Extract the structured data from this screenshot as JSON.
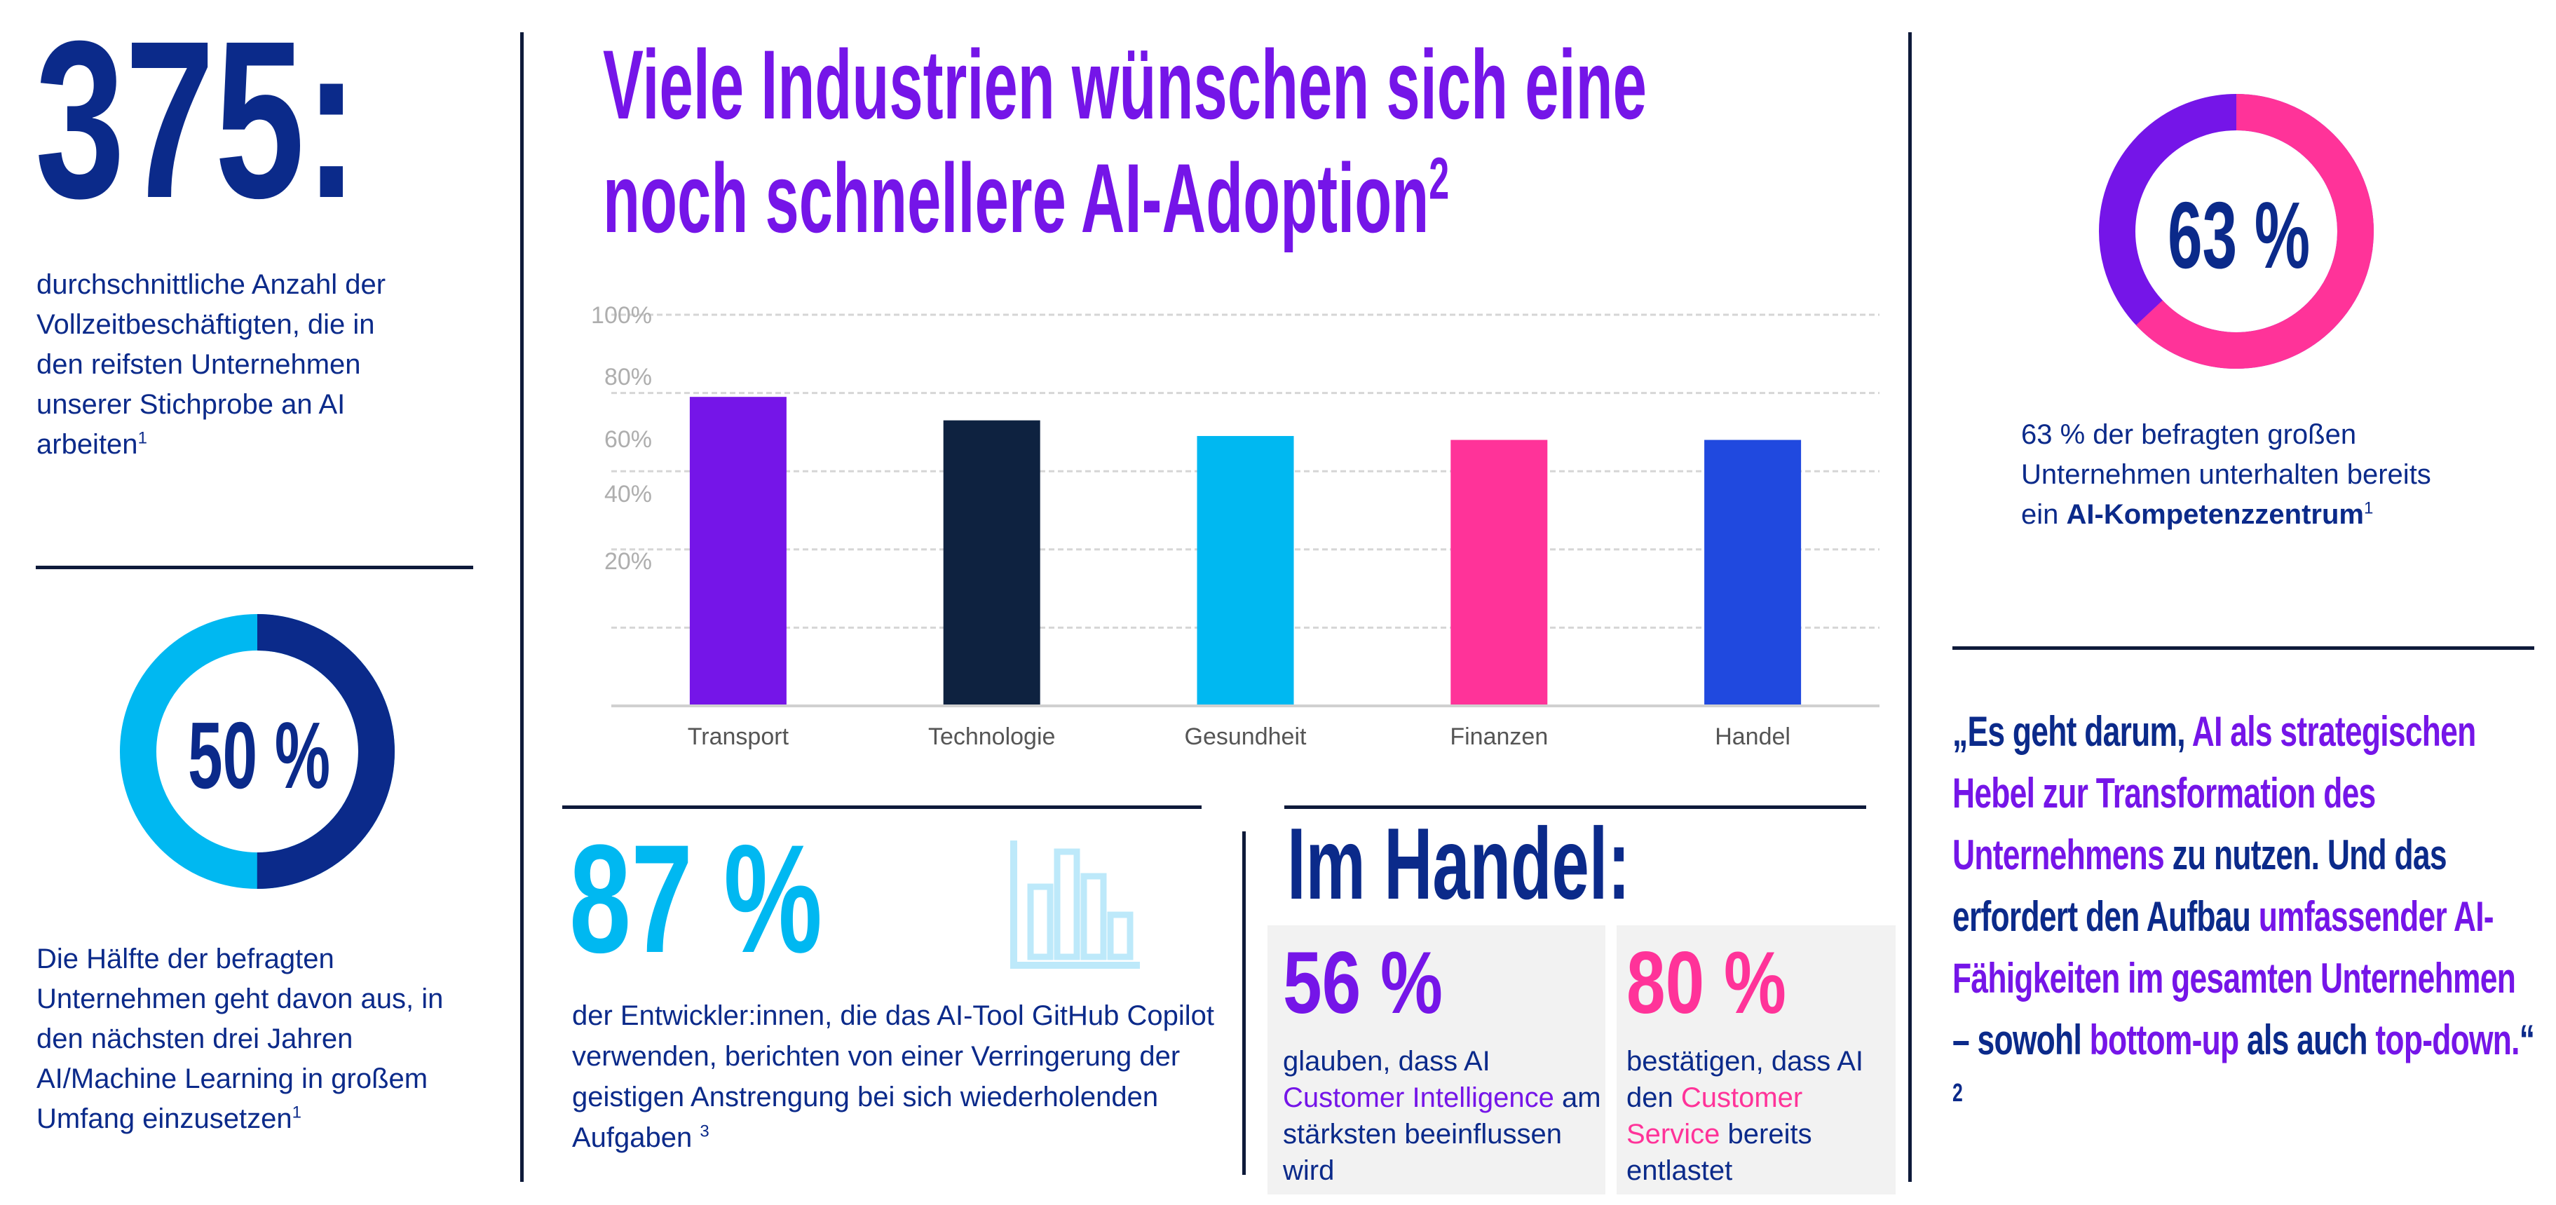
{
  "left": {
    "big_number": "375:",
    "big_text": "durchschnittliche Anzahl der Vollzeitbeschäftigten, die in den reifsten Unternehmen unserer Stichprobe an AI arbeiten",
    "big_sup": "1",
    "donut_label": "50 %",
    "donut_value": 50,
    "donut_text": "Die Hälfte der befragten Unternehmen geht davon aus, in den nächsten drei Jahren AI/Machine Learning in großem Umfang einzusetzen",
    "donut_sup": "1"
  },
  "center": {
    "title_line1": "Viele Industrien wünschen sich eine",
    "title_line2": "noch schnellere AI-Adoption",
    "title_sup": "2",
    "stat_number": "87 %",
    "stat_text": "der Entwickler:innen, die das AI-Tool GitHub Copilot verwenden, berichten von einer Verringerung der geistigen Anstrengung bei sich wiederholenden Aufgaben",
    "stat_sup": "3",
    "handel_title": "Im Handel:",
    "card1": {
      "number": "56 %",
      "pre": "glauben, dass AI ",
      "highlight": "Customer Intelligence",
      "post": " am stärksten beeinflussen wird"
    },
    "card2": {
      "number": "80 %",
      "pre": "bestätigen, dass AI den ",
      "highlight": "Customer Service",
      "post": " bereits entlastet"
    }
  },
  "right": {
    "donut_label": "63 %",
    "donut_value": 63,
    "donut_text_pre": "63 % der befragten großen Unternehmen unterhalten bereits ein ",
    "donut_text_bold": "AI-Kompetenzzentrum",
    "donut_sup": "1",
    "quote": [
      {
        "t": "„Es geht darum, ",
        "hl": false
      },
      {
        "t": "AI als strategischen Hebel zur Transformation des Unternehmens",
        "hl": true
      },
      {
        "t": " zu nutzen. Und das erfordert den Aufbau ",
        "hl": false
      },
      {
        "t": "umfassender AI-Fähigkeiten im gesamten Unternehmen",
        "hl": true
      },
      {
        "t": " – sowohl ",
        "hl": false
      },
      {
        "t": "bottom-up",
        "hl": true
      },
      {
        "t": " als auch ",
        "hl": false
      },
      {
        "t": "top-down.",
        "hl": true
      },
      {
        "t": "“ ",
        "hl": false
      }
    ],
    "quote_sup": "2"
  },
  "colors": {
    "navy": "#0B2A8A",
    "purple": "#7515E8",
    "pink": "#FF3399",
    "cyan": "#00B8F1",
    "blue": "#2049DF",
    "dark": "#0E2240"
  },
  "chart_data": {
    "type": "bar",
    "title": "Viele Industrien wünschen sich eine noch schnellere AI-Adoption",
    "categories": [
      "Transport",
      "Technologie",
      "Gesundheit",
      "Finanzen",
      "Handel"
    ],
    "values": [
      79,
      73,
      69,
      68,
      68
    ],
    "colors": [
      "#7515E8",
      "#0E2240",
      "#00B8F1",
      "#FF3399",
      "#2049DF"
    ],
    "yticks": [
      "100%",
      "80%",
      "60%",
      "40%",
      "20%"
    ],
    "ylim": [
      0,
      100
    ],
    "grid": true,
    "xlabel": "",
    "ylabel": ""
  }
}
